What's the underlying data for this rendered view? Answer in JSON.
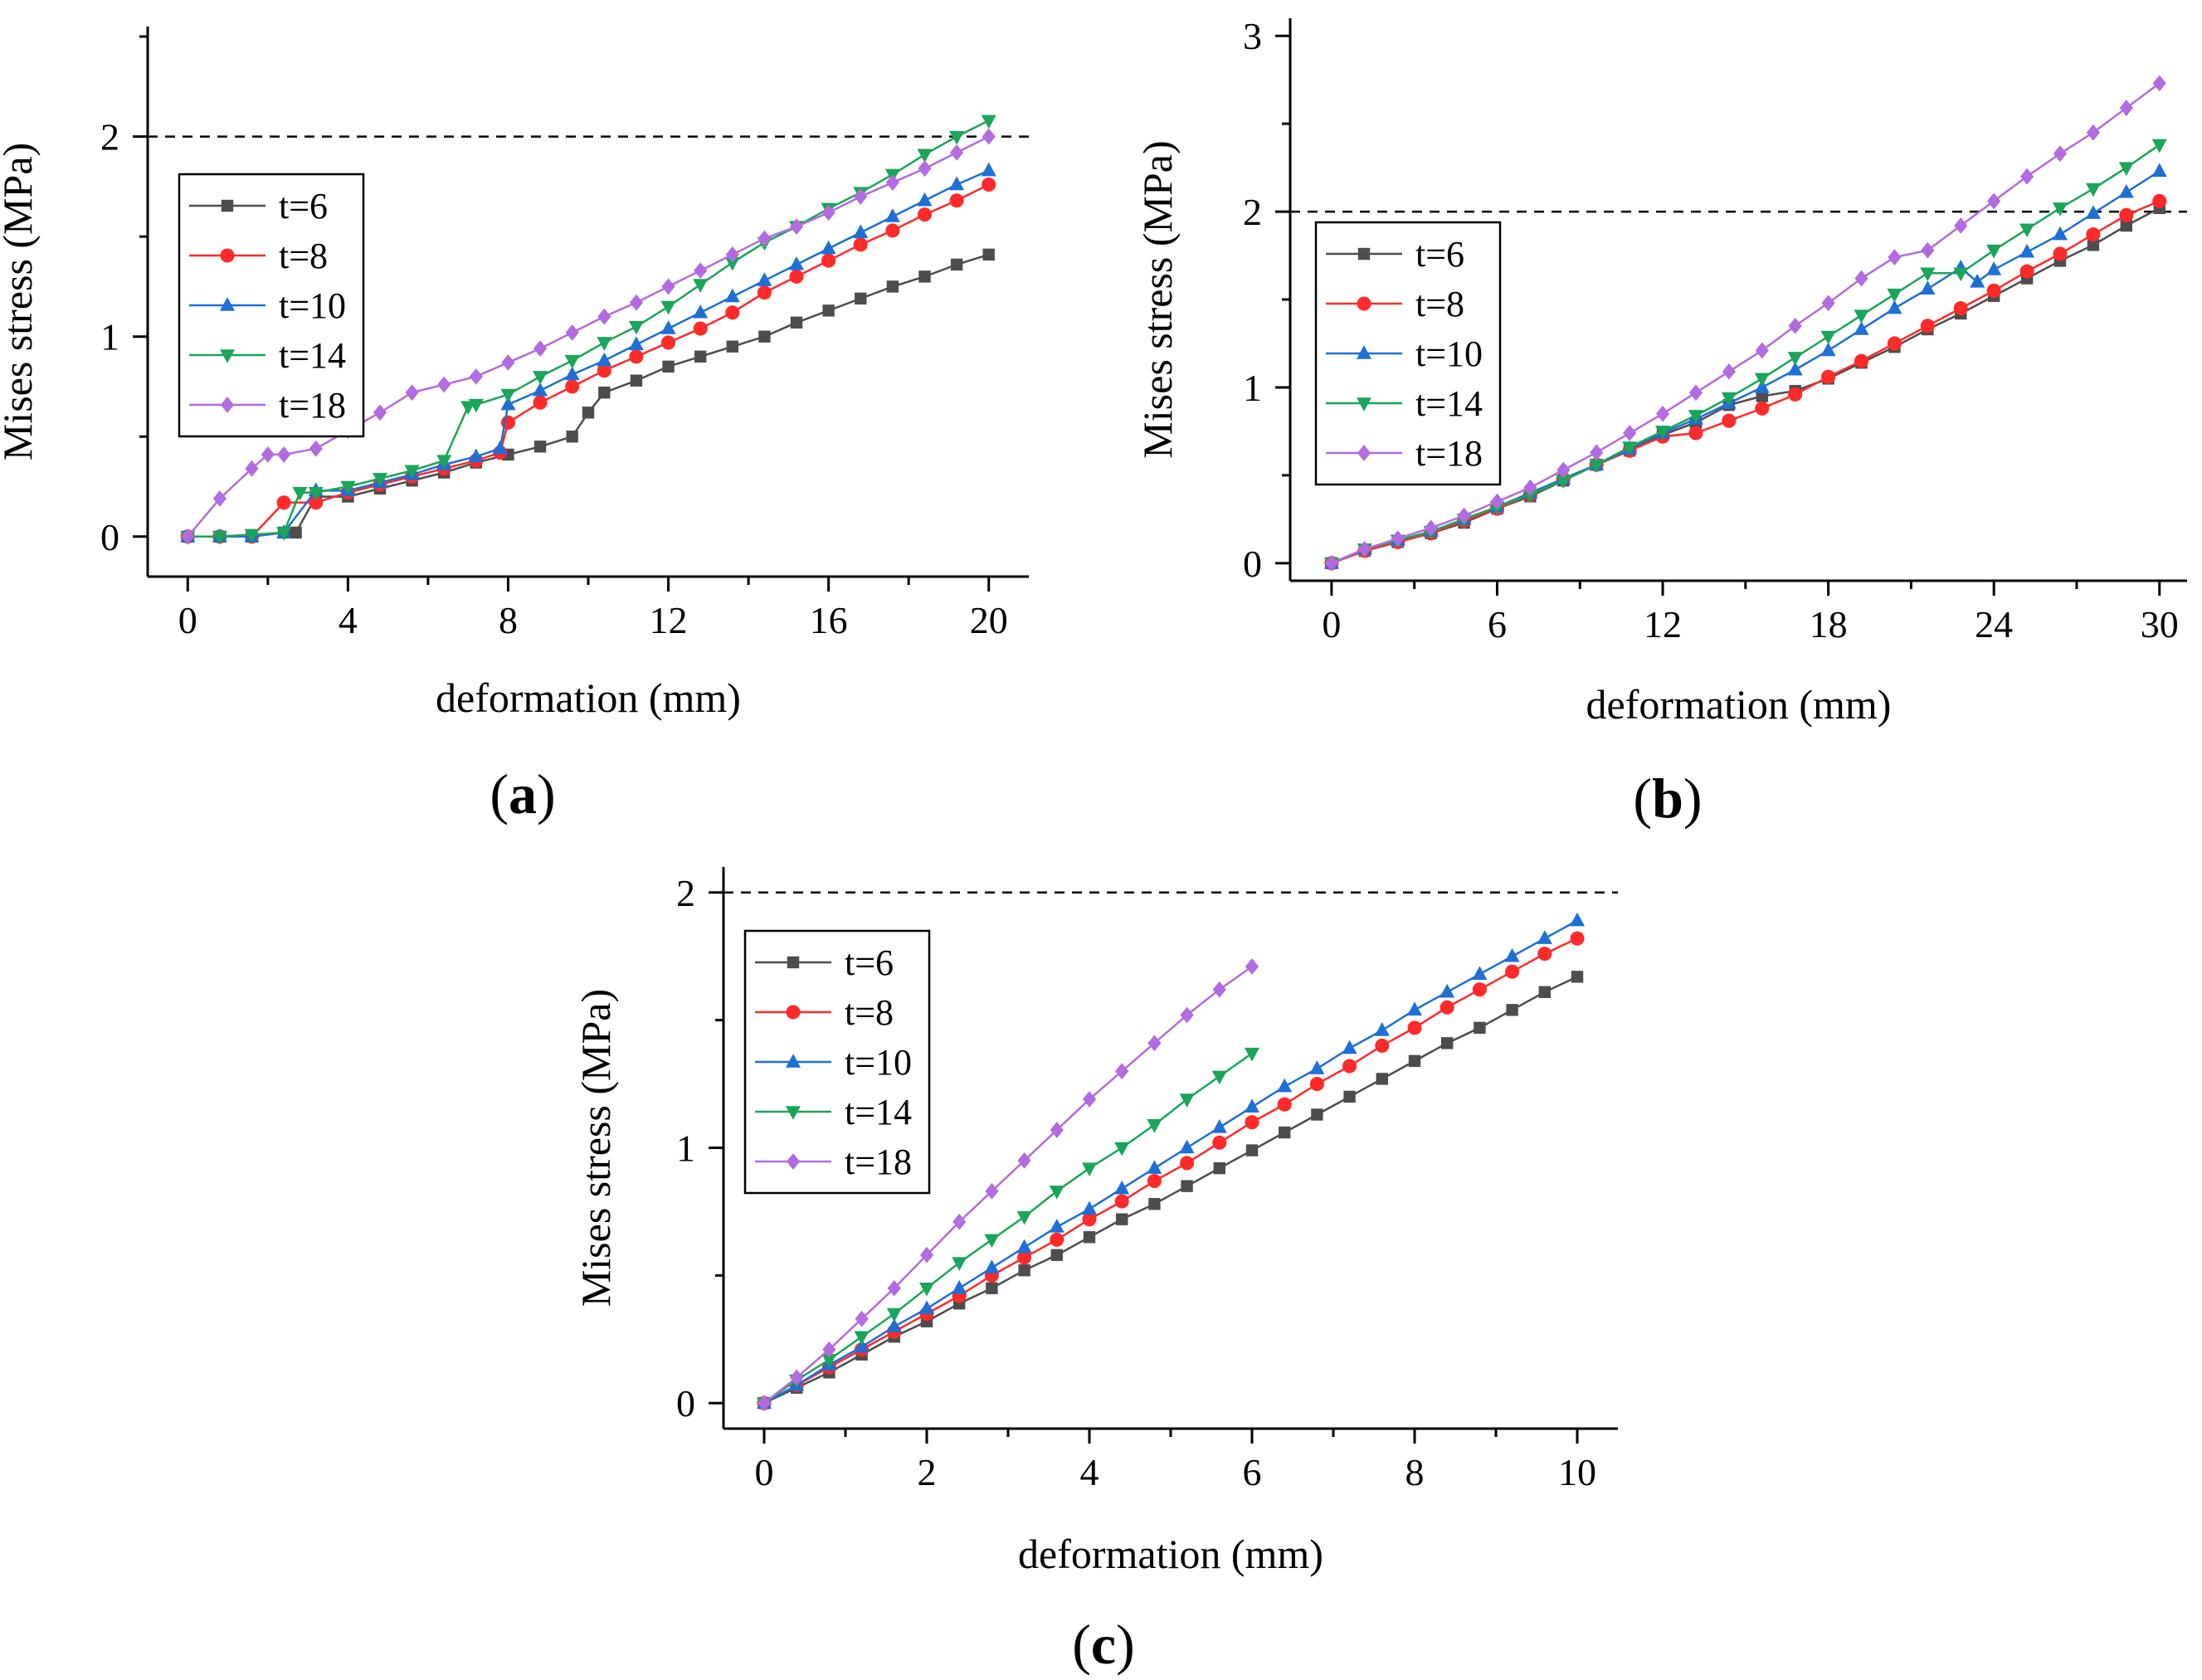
{
  "figure": {
    "panel_labels": [
      "(a)",
      "(b)",
      "(c)"
    ]
  },
  "chart_data": [
    {
      "type": "line",
      "panel": "a",
      "xlabel": "deformation (mm)",
      "ylabel": "Mises stress (MPa)",
      "xlim": [
        -1,
        21
      ],
      "ylim": [
        -0.2,
        2.55
      ],
      "xticks": [
        0,
        4,
        8,
        12,
        16,
        20
      ],
      "yticks": [
        0,
        1,
        2
      ],
      "reference_line": 2,
      "legend_position": "left",
      "series": [
        {
          "name": "t=6",
          "color": "#4d4d4d",
          "marker": "square",
          "x": [
            0,
            0.8,
            1.6,
            2.4,
            2.7,
            3.2,
            4,
            4.8,
            5.6,
            6.4,
            7.2,
            8,
            8.8,
            9.6,
            10,
            10.4,
            11.2,
            12,
            12.8,
            13.6,
            14.4,
            15.2,
            16,
            16.8,
            17.6,
            18.4,
            19.2,
            20
          ],
          "y": [
            0,
            0,
            0,
            0.02,
            0.02,
            0.2,
            0.2,
            0.24,
            0.28,
            0.32,
            0.37,
            0.41,
            0.45,
            0.5,
            0.62,
            0.72,
            0.78,
            0.85,
            0.9,
            0.95,
            1.0,
            1.07,
            1.13,
            1.19,
            1.25,
            1.3,
            1.36,
            1.41
          ]
        },
        {
          "name": "t=8",
          "color": "#ff2a2a",
          "marker": "circle",
          "x": [
            0,
            0.8,
            1.6,
            2.4,
            3.2,
            4,
            4.8,
            5.6,
            6.4,
            7.2,
            7.8,
            8,
            8.8,
            9.6,
            10.4,
            11.2,
            12,
            12.8,
            13.6,
            14.4,
            15.2,
            16,
            16.8,
            17.6,
            18.4,
            19.2,
            20
          ],
          "y": [
            0,
            0,
            0,
            0.17,
            0.17,
            0.22,
            0.26,
            0.3,
            0.34,
            0.38,
            0.42,
            0.57,
            0.67,
            0.75,
            0.83,
            0.9,
            0.97,
            1.04,
            1.12,
            1.22,
            1.3,
            1.38,
            1.46,
            1.53,
            1.61,
            1.68,
            1.76
          ]
        },
        {
          "name": "t=10",
          "color": "#1f6fd6",
          "marker": "triangle-up",
          "x": [
            0,
            0.8,
            1.6,
            2.4,
            3.2,
            4,
            4.8,
            5.6,
            6.4,
            7.2,
            7.8,
            8,
            8.8,
            9.6,
            10.4,
            11.2,
            12,
            12.8,
            13.6,
            14.4,
            15.2,
            16,
            16.8,
            17.6,
            18.4,
            19.2,
            20
          ],
          "y": [
            0,
            0,
            0,
            0.02,
            0.23,
            0.23,
            0.27,
            0.31,
            0.36,
            0.4,
            0.44,
            0.66,
            0.73,
            0.81,
            0.88,
            0.96,
            1.04,
            1.12,
            1.2,
            1.28,
            1.36,
            1.44,
            1.52,
            1.6,
            1.68,
            1.76,
            1.83
          ]
        },
        {
          "name": "t=14",
          "color": "#1aa55a",
          "marker": "triangle-down",
          "x": [
            0,
            0.8,
            1.6,
            2.4,
            2.8,
            3.2,
            4,
            4.8,
            5.6,
            6.4,
            7.0,
            7.2,
            8,
            8.8,
            9.6,
            10.4,
            11.2,
            12,
            12.8,
            13.6,
            14.4,
            15.2,
            16,
            16.8,
            17.6,
            18.4,
            19.2,
            20
          ],
          "y": [
            0,
            0,
            0.01,
            0.02,
            0.22,
            0.22,
            0.25,
            0.29,
            0.33,
            0.38,
            0.65,
            0.66,
            0.71,
            0.8,
            0.88,
            0.97,
            1.05,
            1.15,
            1.26,
            1.37,
            1.47,
            1.55,
            1.64,
            1.72,
            1.81,
            1.91,
            2.0,
            2.08
          ]
        },
        {
          "name": "t=18",
          "color": "#b36be0",
          "marker": "diamond",
          "x": [
            0,
            0.8,
            1.6,
            2.0,
            2.4,
            3.2,
            4,
            4.8,
            5.6,
            6.4,
            7.2,
            8,
            8.8,
            9.6,
            10.4,
            11.2,
            12,
            12.8,
            13.6,
            14.4,
            15.2,
            16,
            16.8,
            17.6,
            18.4,
            19.2,
            20
          ],
          "y": [
            0,
            0.19,
            0.34,
            0.41,
            0.41,
            0.44,
            0.53,
            0.62,
            0.72,
            0.76,
            0.8,
            0.87,
            0.94,
            1.02,
            1.1,
            1.17,
            1.25,
            1.33,
            1.41,
            1.49,
            1.55,
            1.62,
            1.7,
            1.77,
            1.84,
            1.92,
            2.0
          ]
        }
      ]
    },
    {
      "type": "line",
      "panel": "b",
      "xlabel": "deformation (mm)",
      "ylabel": "Mises stress (MPa)",
      "xlim": [
        -1.5,
        31
      ],
      "ylim": [
        -0.1,
        3.1
      ],
      "xticks": [
        0,
        6,
        12,
        18,
        24,
        30
      ],
      "yticks": [
        0,
        1,
        2,
        3
      ],
      "reference_line": 2,
      "legend_position": "left",
      "series": [
        {
          "name": "t=6",
          "color": "#4d4d4d",
          "marker": "square",
          "x": [
            0,
            1.2,
            2.4,
            3.6,
            4.8,
            6,
            7.2,
            8.4,
            9.6,
            10.8,
            12,
            13.2,
            14.4,
            15.6,
            16.8,
            18,
            19.2,
            20.4,
            21.6,
            22.8,
            24,
            25.2,
            26.4,
            27.6,
            28.8,
            30
          ],
          "y": [
            0,
            0.07,
            0.12,
            0.17,
            0.23,
            0.31,
            0.38,
            0.47,
            0.56,
            0.64,
            0.73,
            0.8,
            0.9,
            0.95,
            0.98,
            1.05,
            1.14,
            1.23,
            1.33,
            1.42,
            1.52,
            1.62,
            1.72,
            1.81,
            1.92,
            2.02
          ]
        },
        {
          "name": "t=8",
          "color": "#ff2a2a",
          "marker": "circle",
          "x": [
            0,
            1.2,
            2.4,
            3.6,
            4.8,
            6,
            7.2,
            8.4,
            9.6,
            10.8,
            12,
            13.2,
            14.4,
            15.6,
            16.8,
            18,
            19.2,
            20.4,
            21.6,
            22.8,
            24,
            25.2,
            26.4,
            27.6,
            28.8,
            30
          ],
          "y": [
            0,
            0.07,
            0.12,
            0.17,
            0.24,
            0.31,
            0.39,
            0.48,
            0.56,
            0.64,
            0.72,
            0.74,
            0.81,
            0.88,
            0.96,
            1.06,
            1.15,
            1.25,
            1.35,
            1.45,
            1.55,
            1.66,
            1.76,
            1.87,
            1.98,
            2.06
          ]
        },
        {
          "name": "t=10",
          "color": "#1f6fd6",
          "marker": "triangle-up",
          "x": [
            0,
            1.2,
            2.4,
            3.6,
            4.8,
            6,
            7.2,
            8.4,
            9.6,
            10.8,
            12,
            13.2,
            14.4,
            15.6,
            16.8,
            18,
            19.2,
            20.4,
            21.6,
            22.8,
            23.4,
            24,
            25.2,
            26.4,
            27.6,
            28.8,
            30
          ],
          "y": [
            0,
            0.08,
            0.13,
            0.18,
            0.25,
            0.32,
            0.4,
            0.48,
            0.56,
            0.65,
            0.74,
            0.82,
            0.91,
            1.0,
            1.1,
            1.21,
            1.33,
            1.45,
            1.56,
            1.68,
            1.6,
            1.67,
            1.77,
            1.87,
            1.99,
            2.11,
            2.23
          ]
        },
        {
          "name": "t=14",
          "color": "#1aa55a",
          "marker": "triangle-down",
          "x": [
            0,
            1.2,
            2.4,
            3.6,
            4.8,
            6,
            7.2,
            8.4,
            9.6,
            10.8,
            12,
            13.2,
            14.4,
            15.6,
            16.8,
            18,
            19.2,
            20.4,
            21.6,
            22.8,
            24,
            25.2,
            26.4,
            27.6,
            28.8,
            30
          ],
          "y": [
            0,
            0.08,
            0.13,
            0.18,
            0.25,
            0.32,
            0.39,
            0.47,
            0.56,
            0.66,
            0.75,
            0.84,
            0.94,
            1.05,
            1.17,
            1.29,
            1.41,
            1.53,
            1.65,
            1.65,
            1.78,
            1.9,
            2.02,
            2.13,
            2.25,
            2.38
          ]
        },
        {
          "name": "t=18",
          "color": "#b36be0",
          "marker": "diamond",
          "x": [
            0,
            1.2,
            2.4,
            3.6,
            4.8,
            6,
            7.2,
            8.4,
            9.6,
            10.8,
            12,
            13.2,
            14.4,
            15.6,
            16.8,
            18,
            19.2,
            20.4,
            21.6,
            22.8,
            24,
            25.2,
            26.4,
            27.6,
            28.8,
            30
          ],
          "y": [
            0,
            0.08,
            0.14,
            0.2,
            0.27,
            0.35,
            0.43,
            0.53,
            0.63,
            0.74,
            0.85,
            0.97,
            1.09,
            1.21,
            1.35,
            1.48,
            1.62,
            1.74,
            1.78,
            1.92,
            2.06,
            2.2,
            2.33,
            2.45,
            2.59,
            2.73
          ]
        }
      ]
    },
    {
      "type": "line",
      "panel": "c",
      "xlabel": "deformation (mm)",
      "ylabel": "Mises stress (MPa)",
      "xlim": [
        -0.5,
        10.5
      ],
      "ylim": [
        -0.1,
        2.1
      ],
      "xticks": [
        0,
        2,
        4,
        6,
        8,
        10
      ],
      "yticks": [
        0,
        1,
        2
      ],
      "reference_line": 2,
      "legend_position": "top-left",
      "series": [
        {
          "name": "t=6",
          "color": "#4d4d4d",
          "marker": "square",
          "x": [
            0,
            0.4,
            0.8,
            1.2,
            1.6,
            2,
            2.4,
            2.8,
            3.2,
            3.6,
            4,
            4.4,
            4.8,
            5.2,
            5.6,
            6,
            6.4,
            6.8,
            7.2,
            7.6,
            8,
            8.4,
            8.8,
            9.2,
            9.6,
            10
          ],
          "y": [
            0,
            0.06,
            0.12,
            0.19,
            0.26,
            0.32,
            0.39,
            0.45,
            0.52,
            0.58,
            0.65,
            0.72,
            0.78,
            0.85,
            0.92,
            0.99,
            1.06,
            1.13,
            1.2,
            1.27,
            1.34,
            1.41,
            1.47,
            1.54,
            1.61,
            1.67
          ]
        },
        {
          "name": "t=8",
          "color": "#ff2a2a",
          "marker": "circle",
          "x": [
            0,
            0.4,
            0.8,
            1.2,
            1.6,
            2,
            2.4,
            2.8,
            3.2,
            3.6,
            4,
            4.4,
            4.8,
            5.2,
            5.6,
            6,
            6.4,
            6.8,
            7.2,
            7.6,
            8,
            8.4,
            8.8,
            9.2,
            9.6,
            10
          ],
          "y": [
            0,
            0.07,
            0.14,
            0.21,
            0.28,
            0.35,
            0.42,
            0.5,
            0.57,
            0.64,
            0.72,
            0.79,
            0.87,
            0.94,
            1.02,
            1.1,
            1.17,
            1.25,
            1.32,
            1.4,
            1.47,
            1.55,
            1.62,
            1.69,
            1.76,
            1.82
          ]
        },
        {
          "name": "t=10",
          "color": "#1f6fd6",
          "marker": "triangle-up",
          "x": [
            0,
            0.4,
            0.8,
            1.2,
            1.6,
            2,
            2.4,
            2.8,
            3.2,
            3.6,
            4,
            4.4,
            4.8,
            5.2,
            5.6,
            6,
            6.4,
            6.8,
            7.2,
            7.6,
            8,
            8.4,
            8.8,
            9.2,
            9.6,
            10
          ],
          "y": [
            0,
            0.07,
            0.15,
            0.22,
            0.3,
            0.37,
            0.45,
            0.53,
            0.61,
            0.69,
            0.76,
            0.84,
            0.92,
            1.0,
            1.08,
            1.16,
            1.24,
            1.31,
            1.39,
            1.46,
            1.54,
            1.61,
            1.68,
            1.75,
            1.82,
            1.89
          ]
        },
        {
          "name": "t=14",
          "color": "#1aa55a",
          "marker": "triangle-down",
          "x": [
            0,
            0.4,
            0.8,
            1.2,
            1.6,
            2,
            2.4,
            2.8,
            3.2,
            3.6,
            4,
            4.4,
            4.8,
            5.2,
            5.6,
            6
          ],
          "y": [
            0,
            0.09,
            0.17,
            0.26,
            0.35,
            0.45,
            0.55,
            0.64,
            0.73,
            0.83,
            0.92,
            1.0,
            1.09,
            1.19,
            1.28,
            1.37
          ]
        },
        {
          "name": "t=18",
          "color": "#b36be0",
          "marker": "diamond",
          "x": [
            0,
            0.4,
            0.8,
            1.2,
            1.6,
            2,
            2.4,
            2.8,
            3.2,
            3.6,
            4,
            4.4,
            4.8,
            5.2,
            5.6,
            6
          ],
          "y": [
            0,
            0.1,
            0.21,
            0.33,
            0.45,
            0.58,
            0.71,
            0.83,
            0.95,
            1.07,
            1.19,
            1.3,
            1.41,
            1.52,
            1.62,
            1.71
          ]
        }
      ]
    }
  ]
}
